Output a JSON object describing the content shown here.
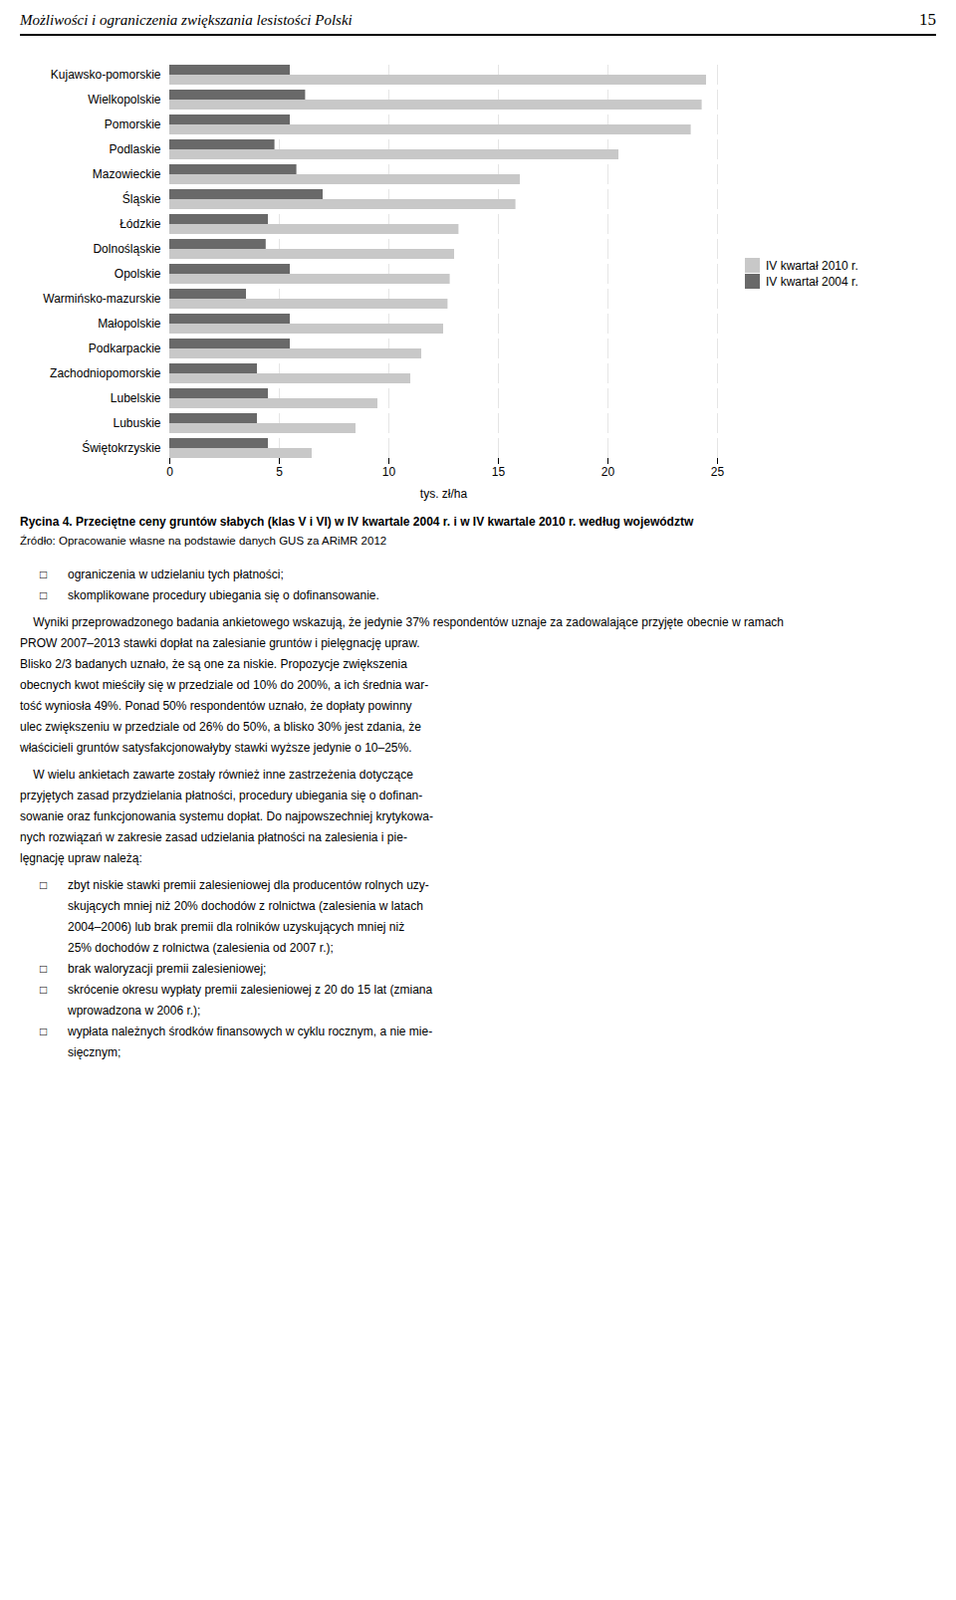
{
  "chart_data": {
    "type": "bar",
    "orientation": "horizontal",
    "title": "Rycina 4. Przeciętne ceny gruntów słabych (klas V i VI) w IV kwartale 2004 r. i w IV kwartale 2010 r. według województw",
    "caption": "Źródło: Opracowanie własne na podstawie danych GUS za ARiMR 2012",
    "categories": [
      "Kujawsko-pomorskie",
      "Wielkopolskie",
      "Pomorskie",
      "Podlaskie",
      "Mazowieckie",
      "Śląskie",
      "Łódzkie",
      "Dolnośląskie",
      "Opolskie",
      "Warmińsko-mazurskie",
      "Małopolskie",
      "Podkarpackie",
      "Zachodniopomorskie",
      "Lubelskie",
      "Lubuskie",
      "Świętokrzyskie"
    ],
    "series": [
      {
        "name": "IV kwartał 2010 r.",
        "color": "#c8c8c8",
        "values": [
          24.5,
          24.3,
          23.8,
          20.5,
          16.0,
          15.8,
          13.2,
          13.0,
          12.8,
          12.7,
          12.5,
          11.5,
          11.0,
          9.5,
          8.5,
          6.5
        ]
      },
      {
        "name": "IV kwartał 2004 r.",
        "color": "#696969",
        "values": [
          5.5,
          6.2,
          5.5,
          4.8,
          5.8,
          7.0,
          4.5,
          4.4,
          5.5,
          3.5,
          5.5,
          5.5,
          4.0,
          4.5,
          4.0,
          4.5
        ]
      }
    ],
    "x_label": "tys. zł/ha",
    "xlim": [
      0,
      25
    ],
    "xticks": [
      0,
      5,
      10,
      15,
      20,
      25
    ],
    "grid": true,
    "legend": "right"
  },
  "page_header": "Możliwości i ograniczenia zwiększania lesistości Polski",
  "page_number": "15",
  "bullet": "□",
  "body": [
    {
      "kind": "bullets",
      "items": [
        [
          "ograniczenia w udzielaniu tych płatności;"
        ],
        [
          "skomplikowane procedury ubiegania się o dofinansowanie."
        ]
      ]
    },
    {
      "kind": "paragraph",
      "lines": [
        "    Wyniki przeprowadzonego badania ankietowego wskazują, że jedynie 37% respondentów uznaje za zadowalające przyjęte obecnie w ramach",
        "PROW 2007–2013 stawki dopłat na zalesianie gruntów i pielęgnację upraw.",
        "Blisko 2/3 badanych uznało, że są one za niskie. Propozycje zwiększenia",
        "obecnych kwot mieściły się w przedziale od 10% do 200%, a ich średnia war-",
        "tość wyniosła 49%. Ponad 50% respondentów uznało, że dopłaty powinny",
        "ulec zwiększeniu w przedziale od 26% do 50%, a blisko 30% jest zdania, że",
        "właścicieli gruntów satysfakcjonowałyby stawki wyższe jedynie o 10–25%."
      ]
    },
    {
      "kind": "paragraph",
      "lines": [
        "    W wielu ankietach zawarte zostały również inne zastrzeżenia dotyczące",
        "przyjętych zasad przydzielania płatności, procedury ubiegania się o dofinan-",
        "sowanie oraz funkcjonowania systemu dopłat. Do najpowszechniej krytykowa-",
        "nych rozwiązań w zakresie zasad udzielania płatności na zalesienia i pie-",
        "lęgnację upraw należą:"
      ]
    },
    {
      "kind": "bullets",
      "items": [
        [
          "zbyt niskie stawki premii zalesieniowej dla producentów rolnych uzy-",
          "skujących mniej niż 20% dochodów z rolnictwa (zalesienia w latach",
          "2004–2006) lub brak premii dla rolników uzyskujących mniej niż",
          "25% dochodów z rolnictwa (zalesienia od 2007 r.);"
        ],
        [
          "brak waloryzacji premii zalesieniowej;"
        ],
        [
          "skrócenie okresu wypłaty premii zalesieniowej z 20 do 15 lat (zmiana",
          "wprowadzona w 2006 r.);"
        ],
        [
          "wypłata należnych środków finansowych w cyklu rocznym, a nie mie-",
          "sięcznym;"
        ]
      ]
    }
  ]
}
